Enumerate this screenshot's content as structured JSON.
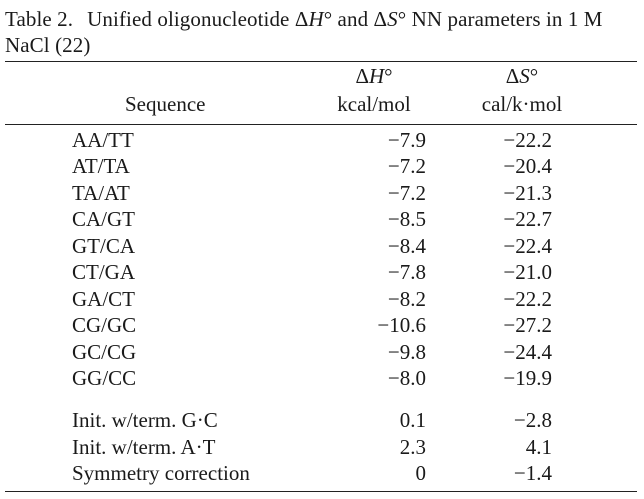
{
  "caption": {
    "label": "Table 2.",
    "text_pre": "Unified oligonucleotide ",
    "delta1": "Δ",
    "h_sym": "H",
    "deg1": "° and ",
    "delta2": "Δ",
    "s_sym": "S",
    "deg2": "° NN parameters in 1 M NaCl (22)"
  },
  "headers": {
    "sequence": "Sequence",
    "dh_delta": "Δ",
    "dh_sym": "H",
    "dh_deg": "°",
    "dh_unit": "kcal/mol",
    "ds_delta": "Δ",
    "ds_sym": "S",
    "ds_deg": "°",
    "ds_unit": "cal/k·mol"
  },
  "rows": [
    {
      "seq": "AA/TT",
      "dh": "−7.9",
      "ds": "−22.2"
    },
    {
      "seq": "AT/TA",
      "dh": "−7.2",
      "ds": "−20.4"
    },
    {
      "seq": "TA/AT",
      "dh": "−7.2",
      "ds": "−21.3"
    },
    {
      "seq": "CA/GT",
      "dh": "−8.5",
      "ds": "−22.7"
    },
    {
      "seq": "GT/CA",
      "dh": "−8.4",
      "ds": "−22.4"
    },
    {
      "seq": "CT/GA",
      "dh": "−7.8",
      "ds": "−21.0"
    },
    {
      "seq": "GA/CT",
      "dh": "−8.2",
      "ds": "−22.2"
    },
    {
      "seq": "CG/GC",
      "dh": "−10.6",
      "ds": "−27.2"
    },
    {
      "seq": "GC/CG",
      "dh": "−9.8",
      "ds": "−24.4"
    },
    {
      "seq": "GG/CC",
      "dh": "−8.0",
      "ds": "−19.9"
    }
  ],
  "extra_rows": [
    {
      "seq": "Init. w/term. G·C",
      "dh": "0.1",
      "ds": "−2.8"
    },
    {
      "seq": "Init. w/term. A·T",
      "dh": "2.3",
      "ds": "4.1"
    },
    {
      "seq": "Symmetry correction",
      "dh": "0",
      "ds": "−1.4"
    }
  ]
}
